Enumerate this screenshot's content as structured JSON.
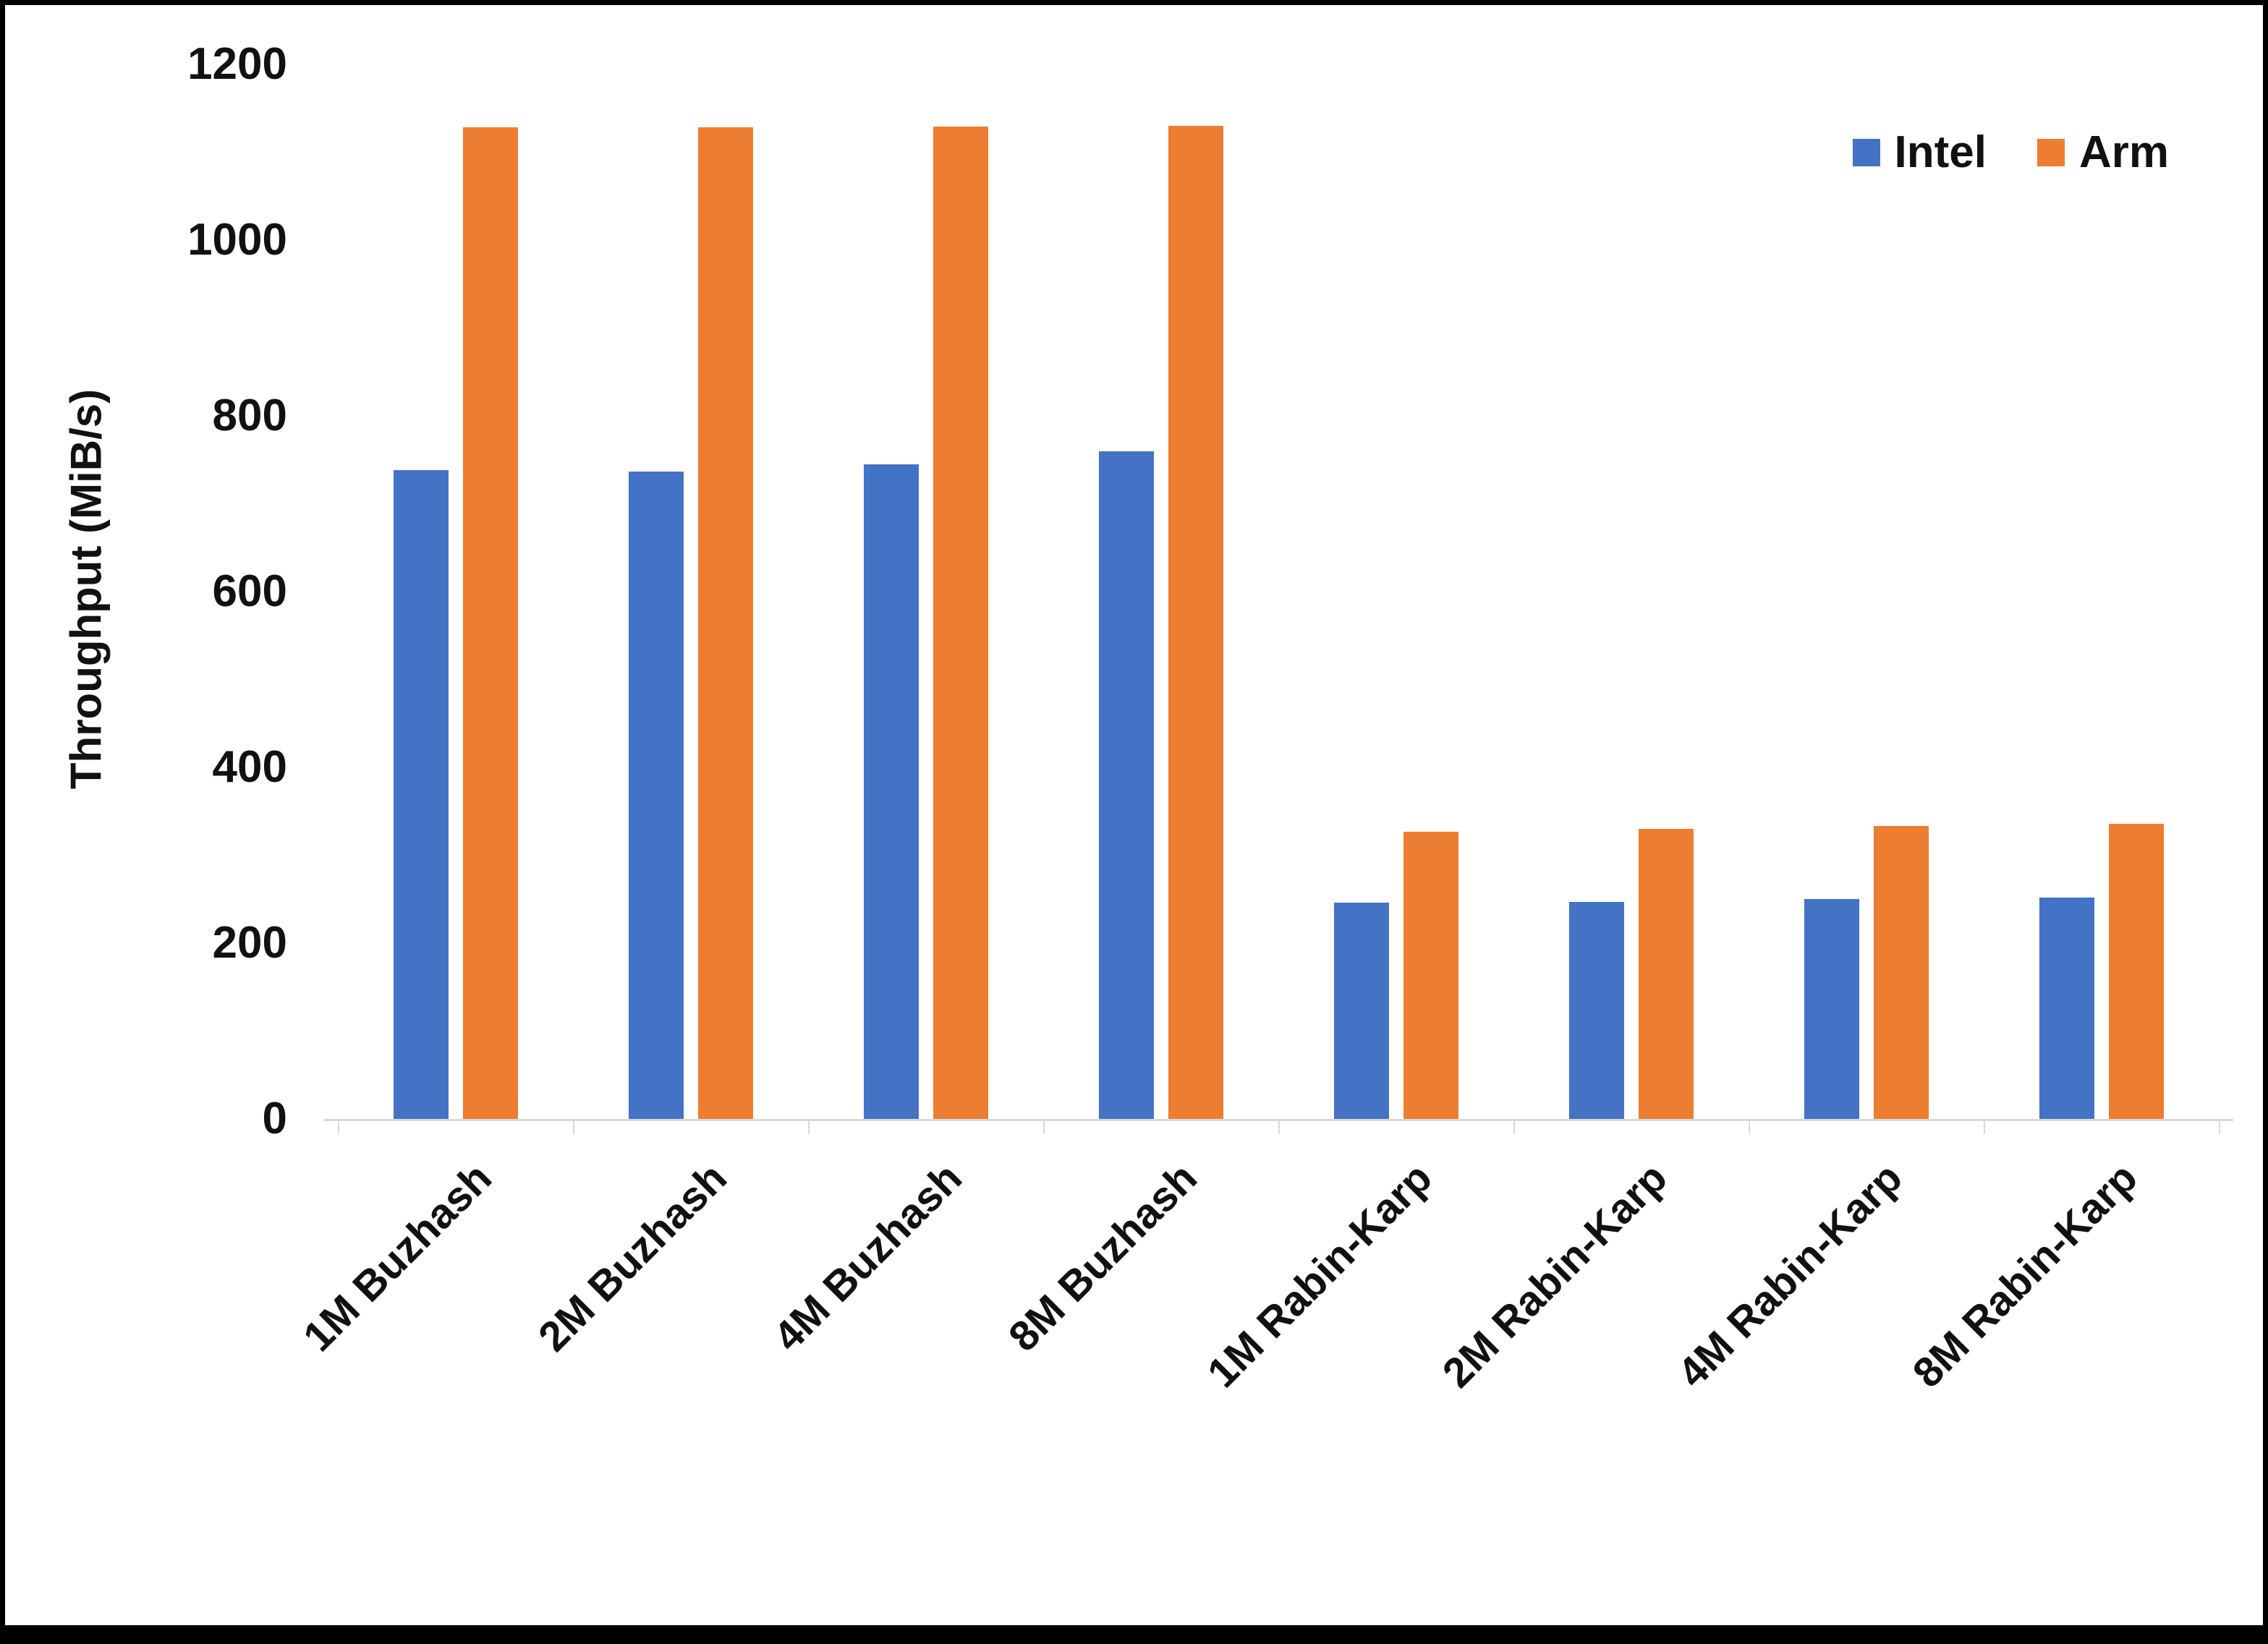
{
  "chart_data": {
    "type": "bar",
    "title": "",
    "xlabel": "",
    "ylabel": "Throughput (MiB/s)",
    "categories": [
      "1M Buzhash",
      "2M Buzhash",
      "4M Buzhash",
      "8M Buzhash",
      "1M Rabin-Karp",
      "2M Rabin-Karp",
      "4M Rabin-Karp",
      "8M Rabin-Karp"
    ],
    "series": [
      {
        "name": "Intel",
        "color": "#4472C4",
        "values": [
          738,
          737,
          745,
          760,
          246,
          247,
          250,
          252
        ]
      },
      {
        "name": "Arm",
        "color": "#ED7D31",
        "values": [
          1128,
          1128,
          1129,
          1130,
          327,
          330,
          333,
          336
        ]
      }
    ],
    "ylim": [
      0,
      1200
    ],
    "yticks": [
      0,
      200,
      400,
      600,
      800,
      1000,
      1200
    ],
    "ytick_step": 200,
    "grid": false,
    "legend_position": "top-right",
    "axis_line_color": "#D9D9D9"
  }
}
